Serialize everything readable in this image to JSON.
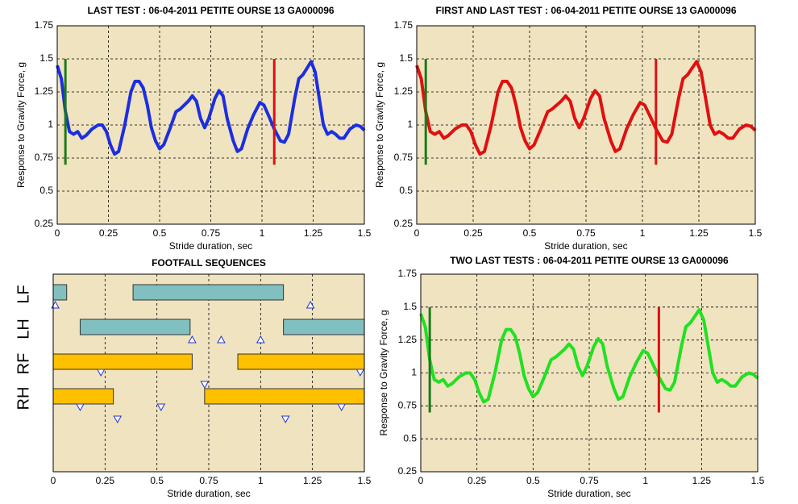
{
  "chart_data": [
    {
      "type": "line",
      "title": "LAST TEST : 06-04-2011 PETITE OURSE 13 GA000096",
      "x_label": "Stride duration, sec",
      "y_label": "Response to Gravity Force, g",
      "xlim": [
        0,
        1.5
      ],
      "ylim": [
        0.25,
        1.75
      ],
      "xticks": [
        0,
        0.25,
        0.5,
        0.75,
        1,
        1.25,
        1.5
      ],
      "yticks": [
        0.25,
        0.5,
        0.75,
        1,
        1.25,
        1.5,
        1.75
      ],
      "grid": true,
      "background": "#f0e3c0",
      "x": [
        0,
        0.02,
        0.04,
        0.06,
        0.08,
        0.1,
        0.12,
        0.14,
        0.17,
        0.2,
        0.22,
        0.24,
        0.26,
        0.28,
        0.3,
        0.33,
        0.36,
        0.38,
        0.4,
        0.42,
        0.44,
        0.46,
        0.48,
        0.5,
        0.52,
        0.55,
        0.58,
        0.6,
        0.62,
        0.64,
        0.66,
        0.68,
        0.7,
        0.72,
        0.74,
        0.77,
        0.79,
        0.81,
        0.83,
        0.86,
        0.88,
        0.9,
        0.93,
        0.96,
        0.99,
        1.01,
        1.03,
        1.06,
        1.09,
        1.11,
        1.13,
        1.16,
        1.18,
        1.2,
        1.22,
        1.24,
        1.26,
        1.28,
        1.3,
        1.32,
        1.34,
        1.36,
        1.38,
        1.4,
        1.43,
        1.46,
        1.48,
        1.5
      ],
      "series": [
        {
          "color": "#1c2ee0",
          "values": [
            1.45,
            1.35,
            1.1,
            0.95,
            0.93,
            0.95,
            0.9,
            0.92,
            0.97,
            1.0,
            1.0,
            0.95,
            0.85,
            0.78,
            0.8,
            1.0,
            1.25,
            1.33,
            1.33,
            1.28,
            1.15,
            0.98,
            0.88,
            0.82,
            0.85,
            0.97,
            1.1,
            1.12,
            1.15,
            1.18,
            1.22,
            1.18,
            1.05,
            0.98,
            1.05,
            1.2,
            1.26,
            1.22,
            1.05,
            0.88,
            0.8,
            0.82,
            0.97,
            1.08,
            1.17,
            1.15,
            1.08,
            0.97,
            0.88,
            0.87,
            0.93,
            1.2,
            1.35,
            1.38,
            1.43,
            1.48,
            1.4,
            1.2,
            1.0,
            0.93,
            0.95,
            0.93,
            0.9,
            0.9,
            0.97,
            1.0,
            0.99,
            0.96
          ]
        }
      ],
      "vlines": [
        {
          "color": "#1a7a1a",
          "x": 0.04,
          "y": [
            0.7,
            1.5
          ]
        },
        {
          "color": "#e01010",
          "x": 1.06,
          "y": [
            0.7,
            1.5
          ]
        }
      ]
    },
    {
      "type": "line",
      "title": "FIRST AND LAST TEST : 06-04-2011 PETITE OURSE 13 GA000096",
      "x_label": "Stride duration, sec",
      "y_label": "Response to Gravity Force, g",
      "xlim": [
        0,
        1.5
      ],
      "ylim": [
        0.25,
        1.75
      ],
      "xticks": [
        0,
        0.25,
        0.5,
        0.75,
        1,
        1.25,
        1.5
      ],
      "yticks": [
        0.25,
        0.5,
        0.75,
        1,
        1.25,
        1.5,
        1.75
      ],
      "grid": true,
      "background": "#f0e3c0",
      "x": [
        0,
        0.02,
        0.04,
        0.06,
        0.08,
        0.1,
        0.12,
        0.14,
        0.17,
        0.2,
        0.22,
        0.24,
        0.26,
        0.28,
        0.3,
        0.33,
        0.36,
        0.38,
        0.4,
        0.42,
        0.44,
        0.46,
        0.48,
        0.5,
        0.52,
        0.55,
        0.58,
        0.6,
        0.62,
        0.64,
        0.66,
        0.68,
        0.7,
        0.72,
        0.74,
        0.77,
        0.79,
        0.81,
        0.83,
        0.86,
        0.88,
        0.9,
        0.93,
        0.96,
        0.99,
        1.01,
        1.03,
        1.06,
        1.09,
        1.11,
        1.13,
        1.16,
        1.18,
        1.2,
        1.22,
        1.24,
        1.26,
        1.28,
        1.3,
        1.32,
        1.34,
        1.36,
        1.38,
        1.4,
        1.43,
        1.46,
        1.48,
        1.5
      ],
      "series": [
        {
          "color": "#e01010",
          "values": [
            1.45,
            1.35,
            1.1,
            0.95,
            0.93,
            0.95,
            0.9,
            0.92,
            0.97,
            1.0,
            1.0,
            0.95,
            0.85,
            0.78,
            0.8,
            1.0,
            1.25,
            1.33,
            1.33,
            1.28,
            1.15,
            0.98,
            0.88,
            0.82,
            0.85,
            0.97,
            1.1,
            1.12,
            1.15,
            1.18,
            1.22,
            1.18,
            1.05,
            0.98,
            1.05,
            1.2,
            1.26,
            1.22,
            1.05,
            0.88,
            0.8,
            0.82,
            0.97,
            1.08,
            1.17,
            1.15,
            1.08,
            0.97,
            0.88,
            0.87,
            0.93,
            1.2,
            1.35,
            1.38,
            1.43,
            1.48,
            1.4,
            1.2,
            1.0,
            0.93,
            0.95,
            0.93,
            0.9,
            0.9,
            0.97,
            1.0,
            0.99,
            0.96
          ]
        }
      ],
      "vlines": [
        {
          "color": "#1a7a1a",
          "x": 0.04,
          "y": [
            0.7,
            1.5
          ]
        },
        {
          "color": "#e01010",
          "x": 1.06,
          "y": [
            0.7,
            1.5
          ]
        }
      ]
    },
    {
      "type": "gantt",
      "title": "FOOTFALL SEQUENCES",
      "x_label": "Stride duration, sec",
      "xlim": [
        0,
        1.5
      ],
      "xticks": [
        0,
        0.25,
        0.5,
        0.75,
        1,
        1.25,
        1.5
      ],
      "grid": true,
      "background": "#f0e3c0",
      "rows": [
        {
          "name": "LF",
          "color": "#80c0c0",
          "bars": [
            [
              0,
              0.065
            ],
            [
              0.385,
              1.11
            ]
          ],
          "up": [
            0.01,
            1.24
          ],
          "down": []
        },
        {
          "name": "LH",
          "color": "#80c0c0",
          "bars": [
            [
              0.13,
              0.66
            ],
            [
              1.11,
              1.5
            ]
          ],
          "up": [
            0.67,
            0.81,
            1.0
          ],
          "down": []
        },
        {
          "name": "RF",
          "color": "#ffc000",
          "bars": [
            [
              0,
              0.67
            ],
            [
              0.89,
              1.5
            ]
          ],
          "up": [],
          "down": [
            0.23,
            0.73,
            1.48
          ]
        },
        {
          "name": "RH",
          "color": "#ffc000",
          "bars": [
            [
              0,
              0.29
            ],
            [
              0.73,
              1.5
            ]
          ],
          "up": [],
          "down": [
            0.13,
            0.31,
            0.52,
            1.12,
            1.39
          ]
        }
      ]
    },
    {
      "type": "line",
      "title": "TWO LAST TESTS : 06-04-2011 PETITE OURSE 13 GA000096",
      "x_label": "Stride duration, sec",
      "y_label": "Response to Gravity Force, g",
      "xlim": [
        0,
        1.5
      ],
      "ylim": [
        0.25,
        1.75
      ],
      "xticks": [
        0,
        0.25,
        0.5,
        0.75,
        1,
        1.25,
        1.5
      ],
      "yticks": [
        0.25,
        0.5,
        0.75,
        1,
        1.25,
        1.5,
        1.75
      ],
      "grid": true,
      "background": "#f0e3c0",
      "x": [
        0,
        0.02,
        0.04,
        0.06,
        0.08,
        0.1,
        0.12,
        0.14,
        0.17,
        0.2,
        0.22,
        0.24,
        0.26,
        0.28,
        0.3,
        0.33,
        0.36,
        0.38,
        0.4,
        0.42,
        0.44,
        0.46,
        0.48,
        0.5,
        0.52,
        0.55,
        0.58,
        0.6,
        0.62,
        0.64,
        0.66,
        0.68,
        0.7,
        0.72,
        0.74,
        0.77,
        0.79,
        0.81,
        0.83,
        0.86,
        0.88,
        0.9,
        0.93,
        0.96,
        0.99,
        1.01,
        1.03,
        1.06,
        1.09,
        1.11,
        1.13,
        1.16,
        1.18,
        1.2,
        1.22,
        1.24,
        1.26,
        1.28,
        1.3,
        1.32,
        1.34,
        1.36,
        1.38,
        1.4,
        1.43,
        1.46,
        1.48,
        1.5
      ],
      "series": [
        {
          "color": "#22e022",
          "values": [
            1.45,
            1.35,
            1.1,
            0.95,
            0.93,
            0.95,
            0.9,
            0.92,
            0.97,
            1.0,
            1.0,
            0.95,
            0.85,
            0.78,
            0.8,
            1.0,
            1.25,
            1.33,
            1.33,
            1.28,
            1.15,
            0.98,
            0.88,
            0.82,
            0.85,
            0.97,
            1.1,
            1.12,
            1.15,
            1.18,
            1.22,
            1.18,
            1.05,
            0.98,
            1.05,
            1.2,
            1.26,
            1.22,
            1.05,
            0.88,
            0.8,
            0.82,
            0.97,
            1.08,
            1.17,
            1.15,
            1.08,
            0.97,
            0.88,
            0.87,
            0.93,
            1.2,
            1.35,
            1.38,
            1.43,
            1.48,
            1.4,
            1.2,
            1.0,
            0.93,
            0.95,
            0.93,
            0.9,
            0.9,
            0.97,
            1.0,
            0.99,
            0.96
          ]
        }
      ],
      "vlines": [
        {
          "color": "#1a7a1a",
          "x": 0.04,
          "y": [
            0.7,
            1.5
          ]
        },
        {
          "color": "#e01010",
          "x": 1.06,
          "y": [
            0.7,
            1.5
          ]
        }
      ]
    }
  ]
}
